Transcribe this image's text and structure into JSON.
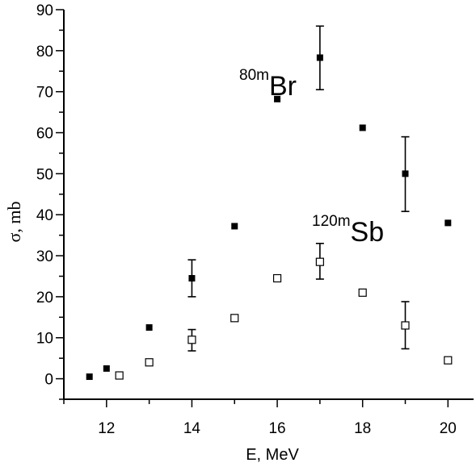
{
  "chart_data": {
    "type": "scatter",
    "xlabel": "E, MeV",
    "ylabel": "σ, mb",
    "xlim": [
      11,
      20.6
    ],
    "ylim": [
      -5,
      90
    ],
    "x_ticks": [
      12,
      14,
      16,
      18,
      20
    ],
    "y_ticks": [
      0,
      10,
      20,
      30,
      40,
      50,
      60,
      70,
      80,
      90
    ],
    "grid": false,
    "series": [
      {
        "marker": "filled-square",
        "color": "#000000",
        "points": [
          {
            "x": 11.6,
            "y": 0.5
          },
          {
            "x": 12.0,
            "y": 2.5
          },
          {
            "x": 13.0,
            "y": 12.5
          },
          {
            "x": 14.0,
            "y": 24.5,
            "err_low": 20,
            "err_high": 29
          },
          {
            "x": 15.0,
            "y": 37.2
          },
          {
            "x": 16.0,
            "y": 68.2
          },
          {
            "x": 17.0,
            "y": 78.3,
            "err_low": 70.5,
            "err_high": 86
          },
          {
            "x": 18.0,
            "y": 61.2
          },
          {
            "x": 19.0,
            "y": 50.0,
            "err_low": 40.8,
            "err_high": 59
          },
          {
            "x": 20.0,
            "y": 38.0
          }
        ]
      },
      {
        "marker": "open-square",
        "color": "#000000",
        "points": [
          {
            "x": 12.3,
            "y": 0.8
          },
          {
            "x": 13.0,
            "y": 4.0
          },
          {
            "x": 14.0,
            "y": 9.5,
            "err_low": 6.8,
            "err_high": 12
          },
          {
            "x": 15.0,
            "y": 14.8
          },
          {
            "x": 16.0,
            "y": 24.5
          },
          {
            "x": 17.0,
            "y": 28.5,
            "err_low": 24.3,
            "err_high": 33
          },
          {
            "x": 18.0,
            "y": 21.0
          },
          {
            "x": 19.0,
            "y": 13.0,
            "err_low": 7.3,
            "err_high": 18.8
          },
          {
            "x": 20.0,
            "y": 4.5
          }
        ]
      }
    ],
    "annotations": [
      {
        "sup": "80m",
        "main": "Br"
      },
      {
        "sup": "120m",
        "main": "Sb"
      }
    ]
  }
}
